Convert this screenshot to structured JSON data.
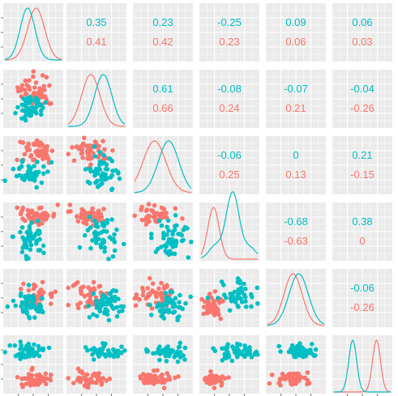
{
  "chart_data": {
    "type": "scatter-matrix",
    "variables": 6,
    "groups": [
      {
        "color": "#f8766d"
      },
      {
        "color": "#00bfc4"
      }
    ],
    "grid": true,
    "correlations": [
      {
        "row": 1,
        "col": 2,
        "values": [
          "0.35",
          "0.41"
        ]
      },
      {
        "row": 1,
        "col": 3,
        "values": [
          "0.23",
          "0.42"
        ]
      },
      {
        "row": 1,
        "col": 4,
        "values": [
          "-0.25",
          "0.23"
        ]
      },
      {
        "row": 1,
        "col": 5,
        "values": [
          "0.09",
          "0.06"
        ]
      },
      {
        "row": 1,
        "col": 6,
        "values": [
          "0.06",
          "0.03"
        ]
      },
      {
        "row": 2,
        "col": 3,
        "values": [
          "0.61",
          "0.66"
        ]
      },
      {
        "row": 2,
        "col": 4,
        "values": [
          "-0.08",
          "0.24"
        ]
      },
      {
        "row": 2,
        "col": 5,
        "values": [
          "-0.07",
          "0.21"
        ]
      },
      {
        "row": 2,
        "col": 6,
        "values": [
          "-0.04",
          "-0.26"
        ]
      },
      {
        "row": 3,
        "col": 4,
        "values": [
          "-0.06",
          "0.25"
        ]
      },
      {
        "row": 3,
        "col": 5,
        "values": [
          "0",
          "0.13"
        ]
      },
      {
        "row": 3,
        "col": 6,
        "values": [
          "0.21",
          "-0.15"
        ]
      },
      {
        "row": 4,
        "col": 5,
        "values": [
          "-0.68",
          "-0.63"
        ]
      },
      {
        "row": 4,
        "col": 6,
        "values": [
          "0.38",
          "0"
        ]
      },
      {
        "row": 5,
        "col": 6,
        "values": [
          "-0.06",
          "-0.26"
        ]
      }
    ],
    "densities": [
      {
        "var": 1,
        "teal_peak": 0.4,
        "salmon_peak": 0.55,
        "teal_sd": 0.13,
        "salmon_sd": 0.15
      },
      {
        "var": 2,
        "teal_peak": 0.62,
        "salmon_peak": 0.4,
        "teal_sd": 0.15,
        "salmon_sd": 0.16
      },
      {
        "var": 3,
        "teal_peak": 0.6,
        "salmon_peak": 0.35,
        "teal_sd": 0.18,
        "salmon_sd": 0.2
      },
      {
        "var": 4,
        "teal_peak": 0.55,
        "salmon_peak": 0.22,
        "teal_sd": 0.2,
        "salmon_sd": 0.1
      },
      {
        "var": 5,
        "teal_peak": 0.55,
        "salmon_peak": 0.45,
        "teal_sd": 0.17,
        "salmon_sd": 0.16
      },
      {
        "var": 6,
        "teal_peak": 0.33,
        "salmon_peak": 0.75,
        "teal_sd": 0.07,
        "salmon_sd": 0.07
      }
    ],
    "scatter_panels": [
      {
        "row": 2,
        "col": 1,
        "teal": [
          0.45,
          0.62,
          0.12,
          0.1
        ],
        "salmon": [
          0.55,
          0.38,
          0.15,
          0.14
        ]
      },
      {
        "row": 3,
        "col": 1,
        "teal": [
          0.45,
          0.65,
          0.13,
          0.1
        ],
        "salmon": [
          0.55,
          0.28,
          0.14,
          0.12
        ]
      },
      {
        "row": 3,
        "col": 2,
        "teal": [
          0.62,
          0.62,
          0.15,
          0.13
        ],
        "salmon": [
          0.38,
          0.28,
          0.14,
          0.12
        ]
      },
      {
        "row": 4,
        "col": 1,
        "teal": [
          0.45,
          0.6,
          0.14,
          0.17
        ],
        "salmon": [
          0.55,
          0.22,
          0.16,
          0.07
        ]
      },
      {
        "row": 4,
        "col": 2,
        "teal": [
          0.62,
          0.6,
          0.14,
          0.17
        ],
        "salmon": [
          0.4,
          0.22,
          0.15,
          0.07
        ]
      },
      {
        "row": 4,
        "col": 3,
        "teal": [
          0.62,
          0.6,
          0.15,
          0.17
        ],
        "salmon": [
          0.35,
          0.22,
          0.15,
          0.07
        ]
      },
      {
        "row": 5,
        "col": 1,
        "teal": [
          0.45,
          0.62,
          0.13,
          0.12
        ],
        "salmon": [
          0.55,
          0.48,
          0.15,
          0.14
        ]
      },
      {
        "row": 5,
        "col": 2,
        "teal": [
          0.62,
          0.6,
          0.14,
          0.12
        ],
        "salmon": [
          0.4,
          0.48,
          0.15,
          0.13
        ]
      },
      {
        "row": 5,
        "col": 3,
        "teal": [
          0.62,
          0.6,
          0.15,
          0.13
        ],
        "salmon": [
          0.35,
          0.45,
          0.15,
          0.13
        ]
      },
      {
        "row": 5,
        "col": 4,
        "teal": [
          0.62,
          0.45,
          0.16,
          0.12
        ],
        "salmon": [
          0.22,
          0.65,
          0.08,
          0.1
        ]
      },
      {
        "row": 6,
        "col": 1,
        "teal": [
          0.45,
          0.28,
          0.12,
          0.06
        ],
        "salmon": [
          0.55,
          0.75,
          0.14,
          0.06
        ]
      },
      {
        "row": 6,
        "col": 2,
        "teal": [
          0.62,
          0.28,
          0.15,
          0.06
        ],
        "salmon": [
          0.4,
          0.75,
          0.16,
          0.06
        ]
      },
      {
        "row": 6,
        "col": 3,
        "teal": [
          0.62,
          0.28,
          0.15,
          0.06
        ],
        "salmon": [
          0.35,
          0.75,
          0.15,
          0.06
        ]
      },
      {
        "row": 6,
        "col": 4,
        "teal": [
          0.62,
          0.28,
          0.16,
          0.06
        ],
        "salmon": [
          0.22,
          0.75,
          0.09,
          0.06
        ]
      },
      {
        "row": 6,
        "col": 5,
        "teal": [
          0.55,
          0.28,
          0.13,
          0.06
        ],
        "salmon": [
          0.45,
          0.75,
          0.13,
          0.06
        ]
      }
    ]
  }
}
